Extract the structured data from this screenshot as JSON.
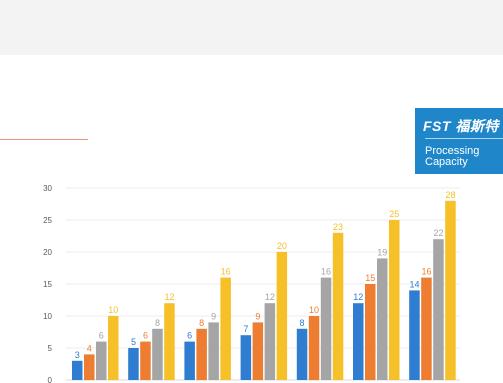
{
  "logo": {
    "brand": "FST",
    "cn_text": "福斯特",
    "caption_line1": "Processing",
    "caption_line2": "Capacity"
  },
  "colors": {
    "top_band": "#f3f3f3",
    "accent_rule": "#ee8f7f",
    "logo_bg": "#1f86c9",
    "series": [
      "#2e7dd0",
      "#ed7d31",
      "#a5a5a5",
      "#f5c028"
    ]
  },
  "chart_data": {
    "type": "bar",
    "title": "",
    "xlabel": "",
    "ylabel": "",
    "ylim": [
      0,
      30
    ],
    "yticks": [
      0,
      5,
      10,
      15,
      20,
      25,
      30
    ],
    "grid": true,
    "categories": [
      "",
      "",
      "",
      "",
      "",
      "",
      ""
    ],
    "series": [
      {
        "values": [
          3,
          5,
          6,
          7,
          8,
          12,
          14
        ]
      },
      {
        "values": [
          4,
          6,
          8,
          9,
          10,
          15,
          16
        ]
      },
      {
        "values": [
          6,
          8,
          9,
          12,
          16,
          19,
          22
        ]
      },
      {
        "values": [
          10,
          12,
          16,
          20,
          23,
          25,
          28
        ]
      }
    ]
  }
}
